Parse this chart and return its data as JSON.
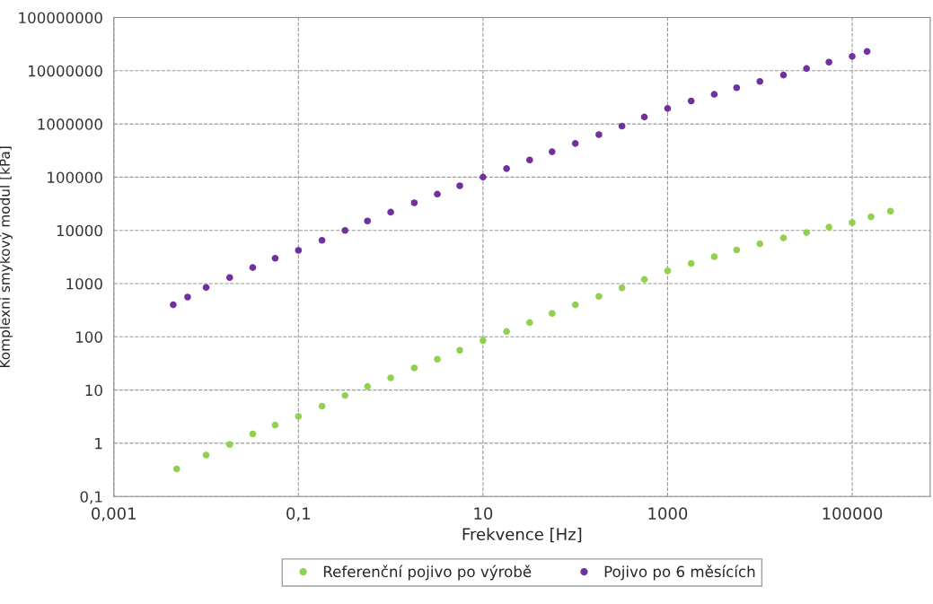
{
  "chart_data": {
    "type": "scatter",
    "xlabel": "Frekvence [Hz]",
    "ylabel": "Komplexní smykový modul [kPa]",
    "log": "xy",
    "grid": true,
    "legend": "bottom",
    "marker": "circle",
    "xlim": [
      0.001,
      700000
    ],
    "ylim": [
      0.1,
      100000000
    ],
    "xticks": [
      {
        "value": 0.001,
        "label": "0,001"
      },
      {
        "value": 0.1,
        "label": "0,1"
      },
      10,
      1000,
      100000
    ],
    "yticks": [
      {
        "value": 0.1,
        "label": "0,1"
      },
      1,
      10,
      100,
      1000,
      10000,
      100000,
      1000000,
      10000000,
      100000000
    ],
    "series": [
      {
        "name": "Referenční pojivo po výrobě",
        "color": "#92d050",
        "x": [
          0.0048,
          0.01,
          0.018,
          0.032,
          0.056,
          0.1,
          0.18,
          0.32,
          0.56,
          1,
          1.8,
          3.2,
          5.6,
          10,
          18,
          32,
          56,
          100,
          180,
          320,
          560,
          1000,
          1800,
          3200,
          5600,
          10000,
          18000,
          32000,
          56000,
          100000,
          160000,
          260000
        ],
        "values": [
          0.33,
          0.6,
          0.95,
          1.5,
          2.2,
          3.2,
          5.0,
          7.9,
          11.7,
          17,
          26,
          38,
          56,
          85,
          126,
          186,
          275,
          400,
          575,
          830,
          1200,
          1740,
          2400,
          3200,
          4300,
          5600,
          7200,
          9100,
          11500,
          14000,
          18000,
          23000
        ]
      },
      {
        "name": "Pojivo po 6 měsících",
        "color": "#7030a0",
        "x": [
          0.0044,
          0.0063,
          0.01,
          0.018,
          0.032,
          0.056,
          0.1,
          0.18,
          0.32,
          0.56,
          1,
          1.8,
          3.2,
          5.6,
          10,
          18,
          32,
          56,
          100,
          180,
          320,
          560,
          1000,
          1800,
          3200,
          5600,
          10000,
          18000,
          32000,
          56000,
          100000,
          145000
        ],
        "values": [
          400,
          560,
          850,
          1300,
          2000,
          3000,
          4200,
          6500,
          10000,
          15000,
          22000,
          33000,
          48000,
          69000,
          100000,
          145000,
          210000,
          300000,
          430000,
          630000,
          910000,
          1350000,
          1950000,
          2700000,
          3600000,
          4800000,
          6300000,
          8300000,
          11000000,
          14500000,
          18600000,
          23000000
        ]
      }
    ]
  }
}
